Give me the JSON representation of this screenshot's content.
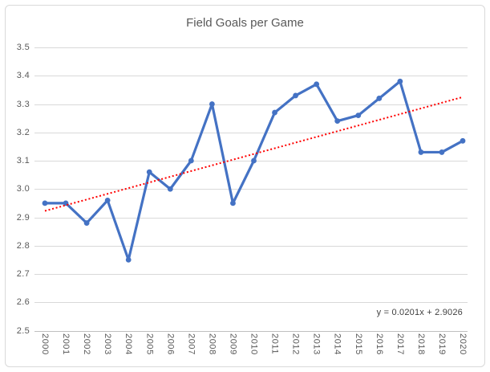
{
  "chart_data": {
    "type": "line",
    "title": "Field Goals per Game",
    "categories": [
      "2000",
      "2001",
      "2002",
      "2003",
      "2004",
      "2005",
      "2006",
      "2007",
      "2008",
      "2009",
      "2010",
      "2011",
      "2012",
      "2013",
      "2014",
      "2015",
      "2016",
      "2017",
      "2018",
      "2019",
      "2020"
    ],
    "series": [
      {
        "values": [
          2.95,
          2.95,
          2.88,
          2.96,
          2.75,
          3.06,
          3.0,
          3.1,
          3.3,
          2.95,
          3.1,
          3.27,
          3.33,
          3.37,
          3.24,
          3.26,
          3.32,
          3.38,
          3.13,
          3.13,
          3.17
        ],
        "color": "#4472C4",
        "marker": "circle"
      }
    ],
    "xlabel": "",
    "ylabel": "",
    "y_axis": {
      "min": 2.5,
      "max": 3.5,
      "step": 0.1,
      "tick_labels": [
        "3.5",
        "3.4",
        "3.3",
        "3.2",
        "3.1",
        "3.0",
        "2.9",
        "2.8",
        "2.7",
        "2.6",
        "2.5"
      ]
    },
    "trendline": {
      "equation": "y = 0.0201x + 2.9026",
      "slope": 0.0201,
      "intercept": 2.9026,
      "style": "dotted",
      "color": "#FF0000"
    },
    "grid": true,
    "legend": "none",
    "colors": {
      "gridline": "#D9D9D9",
      "axis_line": "#BFBFBF",
      "tick_label": "#595959",
      "title_text": "#595959",
      "equation_text": "#404040",
      "chart_border": "#D9D9D9",
      "background": "#FFFFFF"
    }
  }
}
